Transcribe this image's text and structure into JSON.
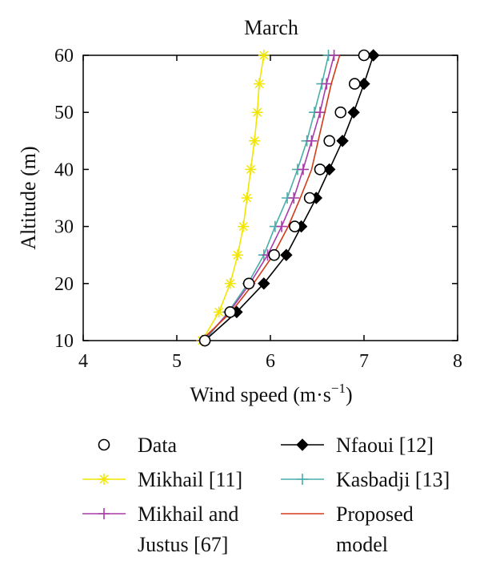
{
  "chart_data": {
    "type": "line",
    "title": "March",
    "xlabel": "Wind speed (m·s",
    "xlabel_sup": "−1",
    "xlabel_end": ")",
    "ylabel": "Altitude (m)",
    "xlim": [
      4,
      8
    ],
    "ylim": [
      10,
      60
    ],
    "xticks": [
      "4",
      "5",
      "6",
      "7",
      "8"
    ],
    "yticks": [
      "10",
      "20",
      "30",
      "40",
      "50",
      "60"
    ],
    "grid": false,
    "legend_position": "bottom",
    "series": [
      {
        "name": "Data",
        "color": "#000000",
        "marker": "circle-open",
        "line": false,
        "points": [
          [
            5.3,
            10
          ],
          [
            5.57,
            15
          ],
          [
            5.77,
            20
          ],
          [
            6.04,
            25
          ],
          [
            6.26,
            30
          ],
          [
            6.42,
            35
          ],
          [
            6.53,
            40
          ],
          [
            6.63,
            45
          ],
          [
            6.75,
            50
          ],
          [
            6.9,
            55
          ],
          [
            7.0,
            60
          ]
        ]
      },
      {
        "name": "Nfaoui [12]",
        "color": "#000000",
        "marker": "diamond-filled",
        "line": true,
        "points": [
          [
            5.3,
            10
          ],
          [
            5.64,
            15
          ],
          [
            5.93,
            20
          ],
          [
            6.17,
            25
          ],
          [
            6.33,
            30
          ],
          [
            6.49,
            35
          ],
          [
            6.63,
            40
          ],
          [
            6.77,
            45
          ],
          [
            6.89,
            50
          ],
          [
            7.0,
            55
          ],
          [
            7.1,
            60
          ]
        ]
      },
      {
        "name": "Mikhail [11]",
        "color": "#f2e600",
        "marker": "asterisk",
        "line": true,
        "points": [
          [
            5.27,
            10
          ],
          [
            5.45,
            15
          ],
          [
            5.57,
            20
          ],
          [
            5.65,
            25
          ],
          [
            5.71,
            30
          ],
          [
            5.75,
            35
          ],
          [
            5.79,
            40
          ],
          [
            5.83,
            45
          ],
          [
            5.86,
            50
          ],
          [
            5.88,
            55
          ],
          [
            5.93,
            60
          ]
        ]
      },
      {
        "name": "Kasbadji [13]",
        "color": "#4aaea8",
        "marker": "plus",
        "line": true,
        "points": [
          [
            5.3,
            10
          ],
          [
            5.55,
            15
          ],
          [
            5.76,
            20
          ],
          [
            5.93,
            25
          ],
          [
            6.05,
            30
          ],
          [
            6.18,
            35
          ],
          [
            6.29,
            40
          ],
          [
            6.39,
            45
          ],
          [
            6.47,
            50
          ],
          [
            6.55,
            55
          ],
          [
            6.62,
            60
          ]
        ]
      },
      {
        "name": "Mikhail and\nJustus [67]",
        "color": "#a83ca8",
        "marker": "plus",
        "line": true,
        "points": [
          [
            5.28,
            10
          ],
          [
            5.56,
            15
          ],
          [
            5.78,
            20
          ],
          [
            5.97,
            25
          ],
          [
            6.12,
            30
          ],
          [
            6.25,
            35
          ],
          [
            6.35,
            40
          ],
          [
            6.44,
            45
          ],
          [
            6.53,
            50
          ],
          [
            6.6,
            55
          ],
          [
            6.68,
            60
          ]
        ]
      },
      {
        "name": "Proposed\nmodel",
        "color": "#d23c18",
        "marker": "none",
        "line": true,
        "points": [
          [
            5.26,
            10
          ],
          [
            5.58,
            15
          ],
          [
            5.82,
            20
          ],
          [
            6.03,
            25
          ],
          [
            6.19,
            30
          ],
          [
            6.32,
            35
          ],
          [
            6.44,
            40
          ],
          [
            6.51,
            45
          ],
          [
            6.58,
            50
          ],
          [
            6.65,
            55
          ],
          [
            6.74,
            60
          ]
        ]
      }
    ]
  }
}
